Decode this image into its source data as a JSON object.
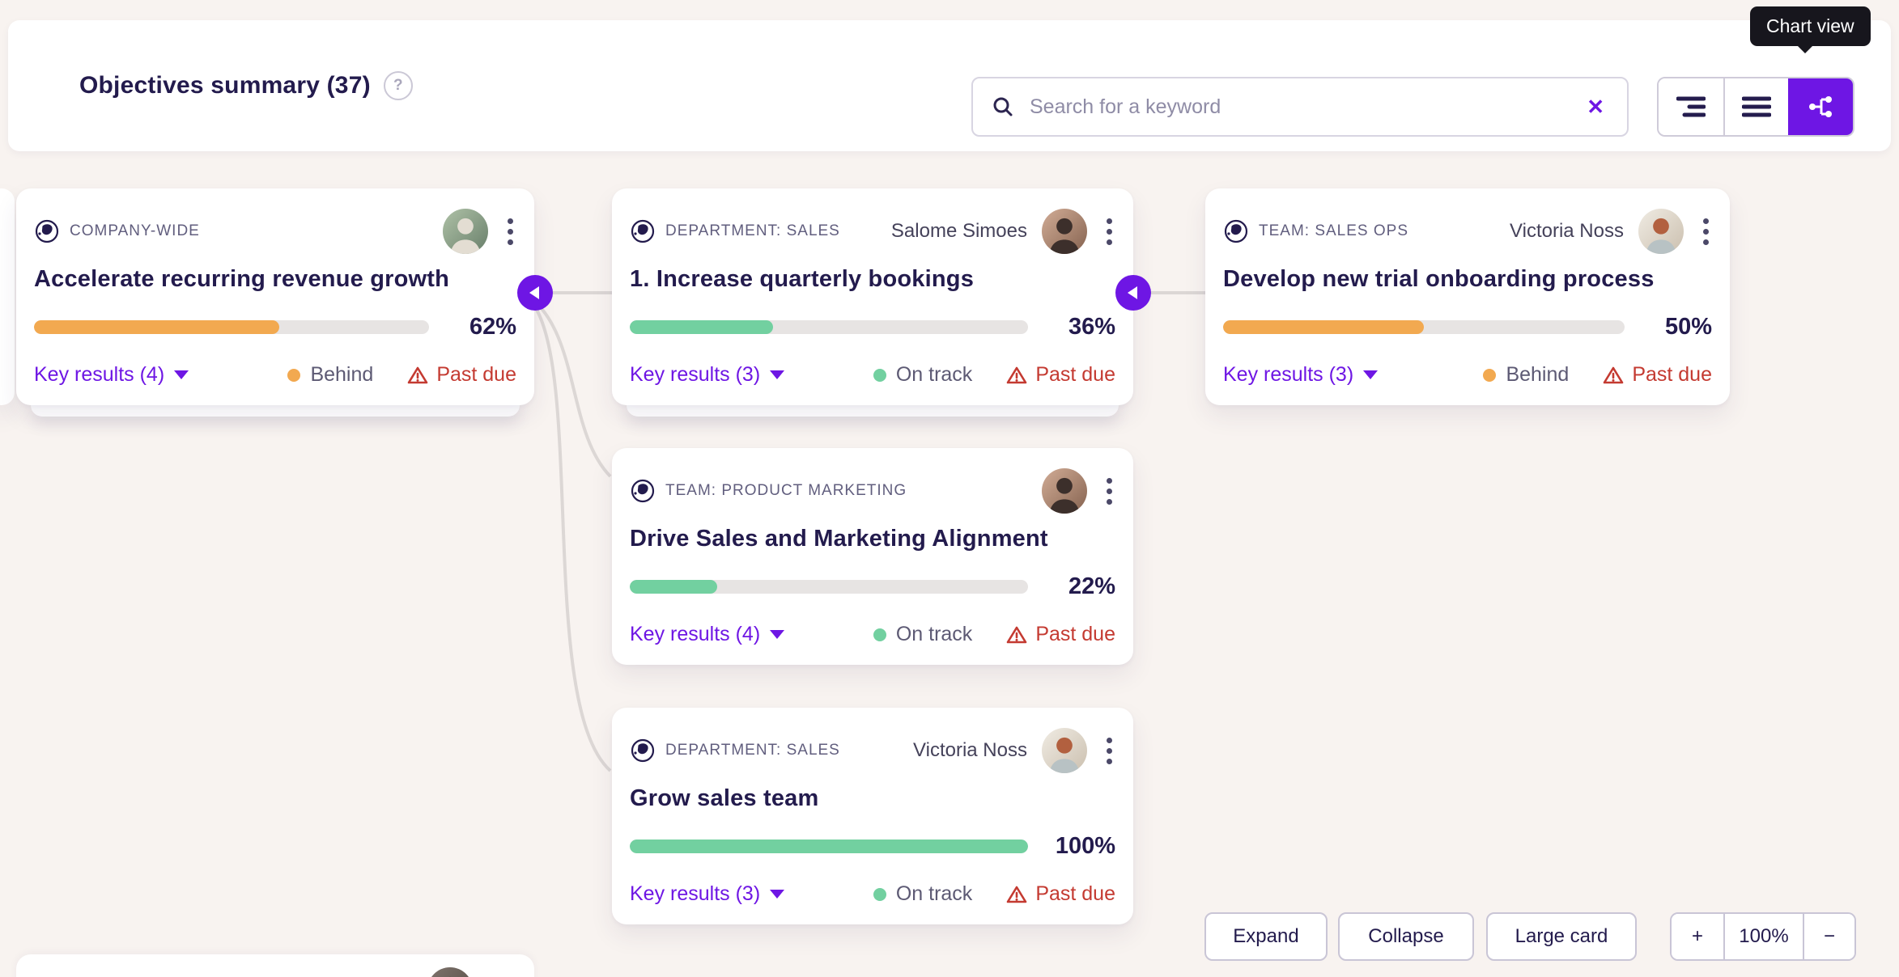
{
  "header": {
    "title": "Objectives summary (37)",
    "help_label": "?",
    "search": {
      "placeholder": "Search for a keyword",
      "clear_label": "✕"
    },
    "view_tooltip": "Chart view"
  },
  "cards": [
    {
      "scope": "COMPANY-WIDE",
      "owner": "",
      "title": "Accelerate recurring revenue growth",
      "progress": 62,
      "percent": "62%",
      "bar_color": "#f2a950",
      "key_results": "Key results (4)",
      "status": "Behind",
      "status_color": "#f2a950",
      "flag": "Past due"
    },
    {
      "scope": "DEPARTMENT: SALES",
      "owner": "Salome Simoes",
      "title": "1. Increase quarterly bookings",
      "progress": 36,
      "percent": "36%",
      "bar_color": "#72d0a0",
      "key_results": "Key results (3)",
      "status": "On track",
      "status_color": "#72d0a0",
      "flag": "Past due"
    },
    {
      "scope": "TEAM: SALES OPS",
      "owner": "Victoria Noss",
      "title": "Develop new trial onboarding process",
      "progress": 50,
      "percent": "50%",
      "bar_color": "#f2a950",
      "key_results": "Key results (3)",
      "status": "Behind",
      "status_color": "#f2a950",
      "flag": "Past due"
    },
    {
      "scope": "TEAM: PRODUCT MARKETING",
      "owner": "",
      "title": "Drive Sales and Marketing Alignment",
      "progress": 22,
      "percent": "22%",
      "bar_color": "#72d0a0",
      "key_results": "Key results (4)",
      "status": "On track",
      "status_color": "#72d0a0",
      "flag": "Past due"
    },
    {
      "scope": "DEPARTMENT: SALES",
      "owner": "Victoria Noss",
      "title": "Grow sales team",
      "progress": 100,
      "percent": "100%",
      "bar_color": "#72d0a0",
      "key_results": "Key results (3)",
      "status": "On track",
      "status_color": "#72d0a0",
      "flag": "Past due"
    }
  ],
  "controls": {
    "expand": "Expand",
    "collapse": "Collapse",
    "large_card": "Large card",
    "zoom_in": "+",
    "zoom_level": "100%",
    "zoom_out": "−"
  },
  "colors": {
    "accent": "#6e16e4",
    "behind": "#f2a950",
    "on_track": "#72d0a0",
    "past_due": "#c43a31",
    "bar_track": "#e7e4e3",
    "navy_text": "#231b4d",
    "page_background": "#f8f3f0",
    "tooltip_background": "#17161d"
  }
}
